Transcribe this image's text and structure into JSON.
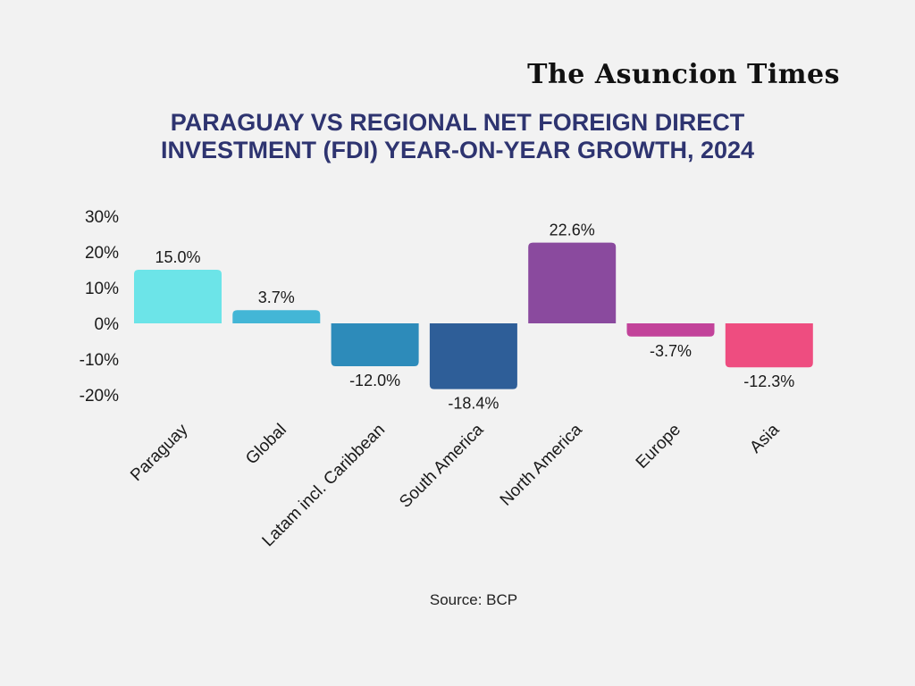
{
  "publisher": "The Asuncion Times",
  "source": "Source: BCP",
  "chart_data": {
    "type": "bar",
    "title": "PARAGUAY VS REGIONAL NET FOREIGN DIRECT INVESTMENT (FDI) YEAR-ON-YEAR GROWTH, 2024",
    "title_lines": [
      "PARAGUAY VS REGIONAL NET FOREIGN DIRECT",
      "INVESTMENT (FDI) YEAR-ON-YEAR GROWTH, 2024"
    ],
    "categories": [
      "Paraguay",
      "Global",
      "Latam incl. Caribbean",
      "South America",
      "North America",
      "Europe",
      "Asia"
    ],
    "values": [
      15.0,
      3.7,
      -12.0,
      -18.4,
      22.6,
      -3.7,
      -12.3
    ],
    "data_labels": [
      "15.0%",
      "3.7%",
      "-12.0%",
      "-18.4%",
      "22.6%",
      "-3.7%",
      "-12.3%"
    ],
    "colors": [
      "#6ce4e8",
      "#43b6d6",
      "#2d8bba",
      "#2e5e98",
      "#8a4a9e",
      "#c2439a",
      "#ee4d80"
    ],
    "y_ticks": [
      30,
      20,
      10,
      0,
      -10,
      -20
    ],
    "y_tick_labels": [
      "30%",
      "20%",
      "10%",
      "0%",
      "-10%",
      "-20%"
    ],
    "ylim": [
      -20,
      30
    ],
    "xlabel": "",
    "ylabel": "",
    "grid": false,
    "legend": "none"
  }
}
